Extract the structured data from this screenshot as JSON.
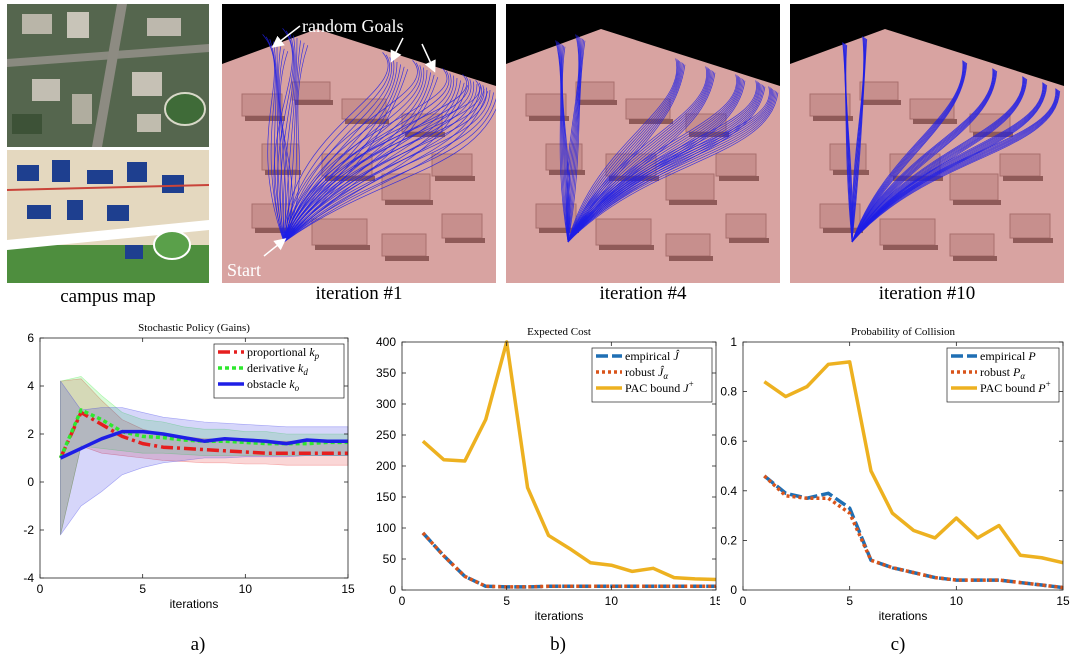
{
  "figure": {
    "top_captions": {
      "campus": "campus map",
      "iter1": "iteration #1",
      "iter4": "iteration #4",
      "iter10": "iteration #10"
    },
    "annotations": {
      "random_goals": "random Goals",
      "start": "Start"
    },
    "bottom_captions": {
      "a": "a)",
      "b": "b)",
      "c": "c)"
    },
    "colors": {
      "terrain": "#d8a3a1",
      "trajectory": "#1f1fe6",
      "proportional": "#e61e1e",
      "derivative": "#2ee82e",
      "obstacle": "#1e1ee6",
      "empirical": "#1f6fb4",
      "robust": "#d9541a",
      "pac": "#edb120"
    }
  },
  "chart_data": [
    {
      "id": "a",
      "type": "line",
      "title": "Stochastic Policy (Gains)",
      "xlabel": "iterations",
      "ylabel": "",
      "xlim": [
        0,
        15
      ],
      "ylim": [
        -4,
        6
      ],
      "xticks": [
        0,
        5,
        10,
        15
      ],
      "yticks": [
        -4,
        -2,
        0,
        2,
        4,
        6
      ],
      "legend_position": "top-right",
      "x": [
        1,
        2,
        3,
        4,
        5,
        6,
        7,
        8,
        9,
        10,
        11,
        12,
        13,
        14,
        15
      ],
      "series": [
        {
          "name": "proportional k_p",
          "legend_main": "proportional ",
          "legend_sym": "k",
          "legend_sub": "p",
          "color": "#e61e1e",
          "dash": "12,4,3,4",
          "values": [
            1.0,
            2.9,
            2.4,
            1.9,
            1.6,
            1.45,
            1.4,
            1.35,
            1.3,
            1.25,
            1.2,
            1.2,
            1.2,
            1.2,
            1.2
          ],
          "band_upper": [
            4.2,
            4.3,
            3.4,
            2.6,
            2.2,
            2.0,
            1.9,
            1.8,
            1.8,
            1.7,
            1.7,
            1.7,
            1.7,
            1.7,
            1.7
          ],
          "band_lower": [
            -2.2,
            1.5,
            1.2,
            1.1,
            1.0,
            0.9,
            0.85,
            0.8,
            0.8,
            0.75,
            0.75,
            0.7,
            0.7,
            0.7,
            0.7
          ]
        },
        {
          "name": "derivative k_d",
          "legend_main": "derivative ",
          "legend_sym": "k",
          "legend_sub": "d",
          "color": "#2ee82e",
          "dash": "4,3",
          "values": [
            1.0,
            3.0,
            2.6,
            2.1,
            1.9,
            1.85,
            1.75,
            1.7,
            1.7,
            1.65,
            1.6,
            1.6,
            1.6,
            1.65,
            1.65
          ],
          "band_upper": [
            4.2,
            4.4,
            3.6,
            2.9,
            2.6,
            2.5,
            2.3,
            2.2,
            2.2,
            2.1,
            2.1,
            2.0,
            2.0,
            2.0,
            2.0
          ],
          "band_lower": [
            -2.2,
            1.5,
            1.4,
            1.3,
            1.2,
            1.2,
            1.15,
            1.1,
            1.1,
            1.1,
            1.1,
            1.1,
            1.1,
            1.1,
            1.1
          ]
        },
        {
          "name": "obstacle k_o",
          "legend_main": "obstacle ",
          "legend_sym": "k",
          "legend_sub": "o",
          "color": "#1e1ee6",
          "dash": "",
          "values": [
            1.0,
            1.4,
            1.8,
            2.1,
            2.1,
            2.0,
            1.85,
            1.7,
            1.8,
            1.75,
            1.7,
            1.6,
            1.75,
            1.7,
            1.7
          ],
          "band_upper": [
            4.2,
            3.0,
            3.1,
            3.1,
            2.9,
            2.7,
            2.6,
            2.5,
            2.45,
            2.4,
            2.35,
            2.3,
            2.3,
            2.3,
            2.3
          ],
          "band_lower": [
            -2.2,
            -1.0,
            -0.4,
            0.3,
            0.6,
            0.8,
            0.9,
            1.0,
            1.0,
            1.05,
            1.05,
            1.05,
            1.1,
            1.1,
            1.1
          ]
        }
      ]
    },
    {
      "id": "b",
      "type": "line",
      "title": "Expected Cost",
      "xlabel": "iterations",
      "ylabel": "",
      "xlim": [
        0,
        15
      ],
      "ylim": [
        0,
        400
      ],
      "xticks": [
        0,
        5,
        10,
        15
      ],
      "yticks": [
        0,
        50,
        100,
        150,
        200,
        250,
        300,
        350,
        400
      ],
      "legend_position": "top-right",
      "x": [
        1,
        2,
        3,
        4,
        5,
        6,
        7,
        8,
        9,
        10,
        11,
        12,
        13,
        14,
        15
      ],
      "series": [
        {
          "name": "empirical Ĵ",
          "legend_main": "empirical ",
          "legend_sym": "Ĵ",
          "legend_sub": "",
          "color": "#1f6fb4",
          "dash": "12,4",
          "values": [
            92,
            55,
            22,
            6,
            5,
            5,
            6,
            6,
            6,
            6,
            6,
            6,
            6,
            6,
            6
          ]
        },
        {
          "name": "robust Ĵ_α",
          "legend_main": "robust ",
          "legend_sym": "Ĵ",
          "legend_sub": "α",
          "color": "#d9541a",
          "dash": "3,3",
          "values": [
            92,
            55,
            22,
            6,
            5,
            5,
            6,
            6,
            6,
            6,
            6,
            6,
            6,
            6,
            6
          ]
        },
        {
          "name": "PAC bound J+",
          "legend_main": "PAC bound ",
          "legend_sym": "J",
          "legend_sup": "+",
          "color": "#edb120",
          "dash": "",
          "values": [
            240,
            210,
            208,
            275,
            400,
            165,
            88,
            67,
            44,
            40,
            30,
            35,
            20,
            18,
            17
          ]
        }
      ]
    },
    {
      "id": "c",
      "type": "line",
      "title": "Probability of Collision",
      "xlabel": "iterations",
      "ylabel": "",
      "xlim": [
        0,
        15
      ],
      "ylim": [
        0,
        1
      ],
      "xticks": [
        0,
        5,
        10,
        15
      ],
      "yticks": [
        0,
        0.2,
        0.4,
        0.6,
        0.8,
        1
      ],
      "legend_position": "top-right",
      "x": [
        1,
        2,
        3,
        4,
        5,
        6,
        7,
        8,
        9,
        10,
        11,
        12,
        13,
        14,
        15
      ],
      "series": [
        {
          "name": "empirical P",
          "legend_main": "empirical ",
          "legend_sym": "P",
          "legend_sub": "",
          "color": "#1f6fb4",
          "dash": "12,4",
          "values": [
            0.46,
            0.39,
            0.37,
            0.39,
            0.33,
            0.12,
            0.09,
            0.07,
            0.05,
            0.04,
            0.04,
            0.04,
            0.03,
            0.02,
            0.01
          ]
        },
        {
          "name": "robust P_α",
          "legend_main": "robust ",
          "legend_sym": "P",
          "legend_sub": "α",
          "color": "#d9541a",
          "dash": "3,3",
          "values": [
            0.46,
            0.38,
            0.37,
            0.37,
            0.31,
            0.12,
            0.09,
            0.07,
            0.05,
            0.04,
            0.04,
            0.04,
            0.03,
            0.02,
            0.01
          ]
        },
        {
          "name": "PAC bound P+",
          "legend_main": "PAC bound ",
          "legend_sym": "P",
          "legend_sup": "+",
          "color": "#edb120",
          "dash": "",
          "values": [
            0.84,
            0.78,
            0.82,
            0.91,
            0.92,
            0.48,
            0.31,
            0.24,
            0.21,
            0.29,
            0.21,
            0.26,
            0.14,
            0.13,
            0.11
          ]
        }
      ]
    }
  ]
}
